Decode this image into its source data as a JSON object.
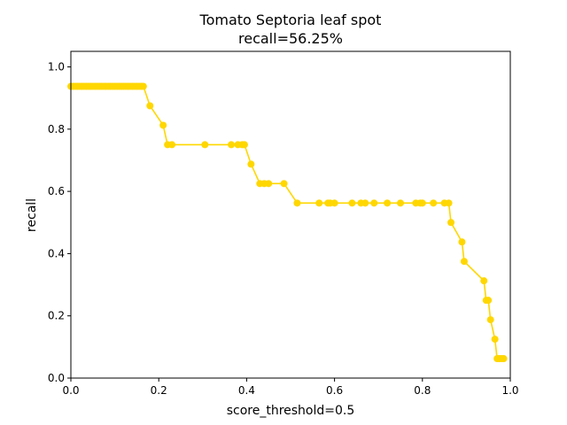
{
  "chart_data": {
    "type": "line",
    "title": "Tomato Septoria leaf spot",
    "subtitle": "recall=56.25%",
    "xlabel": "score_threshold=0.5",
    "ylabel": "recall",
    "xlim": [
      0.0,
      1.0
    ],
    "ylim": [
      0.0,
      1.05
    ],
    "xticks": [
      "0.0",
      "0.2",
      "0.4",
      "0.6",
      "0.8",
      "1.0"
    ],
    "yticks": [
      "0.0",
      "0.2",
      "0.4",
      "0.6",
      "0.8",
      "1.0"
    ],
    "grid": false,
    "color": "#FFD700",
    "series": [
      {
        "x": [
          0.0,
          0.005,
          0.01,
          0.015,
          0.02,
          0.025,
          0.03,
          0.035,
          0.04,
          0.045,
          0.05,
          0.055,
          0.06,
          0.065,
          0.07,
          0.075,
          0.08,
          0.085,
          0.09,
          0.095,
          0.1,
          0.105,
          0.11,
          0.115,
          0.12,
          0.125,
          0.13,
          0.135,
          0.14,
          0.145,
          0.15,
          0.155,
          0.16,
          0.165,
          0.18,
          0.21,
          0.22,
          0.23,
          0.305,
          0.365,
          0.38,
          0.39,
          0.395,
          0.41,
          0.43,
          0.44,
          0.45,
          0.485,
          0.515,
          0.565,
          0.585,
          0.59,
          0.6,
          0.64,
          0.66,
          0.67,
          0.69,
          0.72,
          0.75,
          0.785,
          0.795,
          0.8,
          0.825,
          0.85,
          0.86,
          0.865,
          0.89,
          0.895,
          0.94,
          0.945,
          0.95,
          0.955,
          0.965,
          0.97,
          0.975,
          0.98,
          0.985
        ],
        "y": [
          0.9375,
          0.9375,
          0.9375,
          0.9375,
          0.9375,
          0.9375,
          0.9375,
          0.9375,
          0.9375,
          0.9375,
          0.9375,
          0.9375,
          0.9375,
          0.9375,
          0.9375,
          0.9375,
          0.9375,
          0.9375,
          0.9375,
          0.9375,
          0.9375,
          0.9375,
          0.9375,
          0.9375,
          0.9375,
          0.9375,
          0.9375,
          0.9375,
          0.9375,
          0.9375,
          0.9375,
          0.9375,
          0.9375,
          0.9375,
          0.875,
          0.8125,
          0.75,
          0.75,
          0.75,
          0.75,
          0.75,
          0.75,
          0.75,
          0.6875,
          0.625,
          0.625,
          0.625,
          0.625,
          0.5625,
          0.5625,
          0.5625,
          0.5625,
          0.5625,
          0.5625,
          0.5625,
          0.5625,
          0.5625,
          0.5625,
          0.5625,
          0.5625,
          0.5625,
          0.5625,
          0.5625,
          0.5625,
          0.5625,
          0.5,
          0.4375,
          0.375,
          0.3125,
          0.25,
          0.25,
          0.1875,
          0.125,
          0.0625,
          0.0625,
          0.0625,
          0.0625
        ]
      }
    ]
  }
}
